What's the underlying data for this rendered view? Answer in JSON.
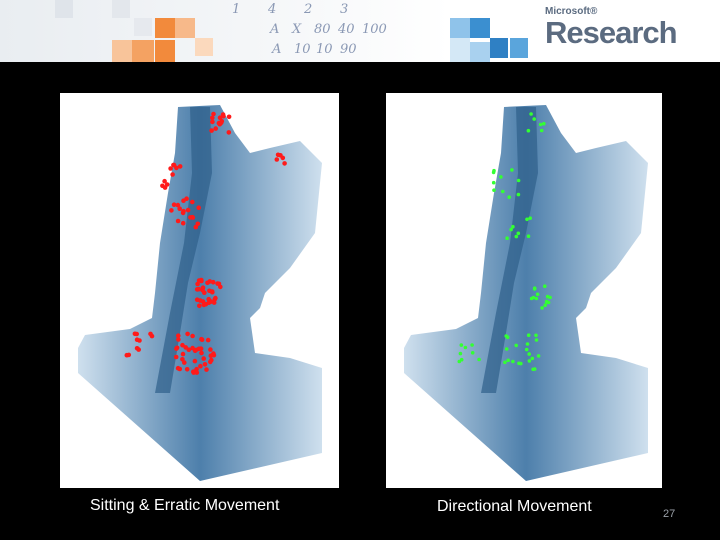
{
  "slide": {
    "captions": {
      "left": "Sitting & Erratic  Movement",
      "right": "Directional Movement"
    },
    "page_number": "27",
    "logo": {
      "small": "Microsoft®",
      "big": "Research"
    },
    "header_notes": [
      "A",
      "X",
      "80",
      "40",
      "100",
      "A",
      "10",
      "10",
      "90",
      "1",
      "4",
      "2",
      "3"
    ],
    "colors": {
      "background": "#000000",
      "sitting_markers": "#ff1a1a",
      "directional_markers": "#33ff33",
      "water_deep": "#2f5f8a",
      "water_shallow": "#cfe0ee",
      "orange_squares": "#f28a3c",
      "blue_squares": "#3b8fd0"
    }
  }
}
